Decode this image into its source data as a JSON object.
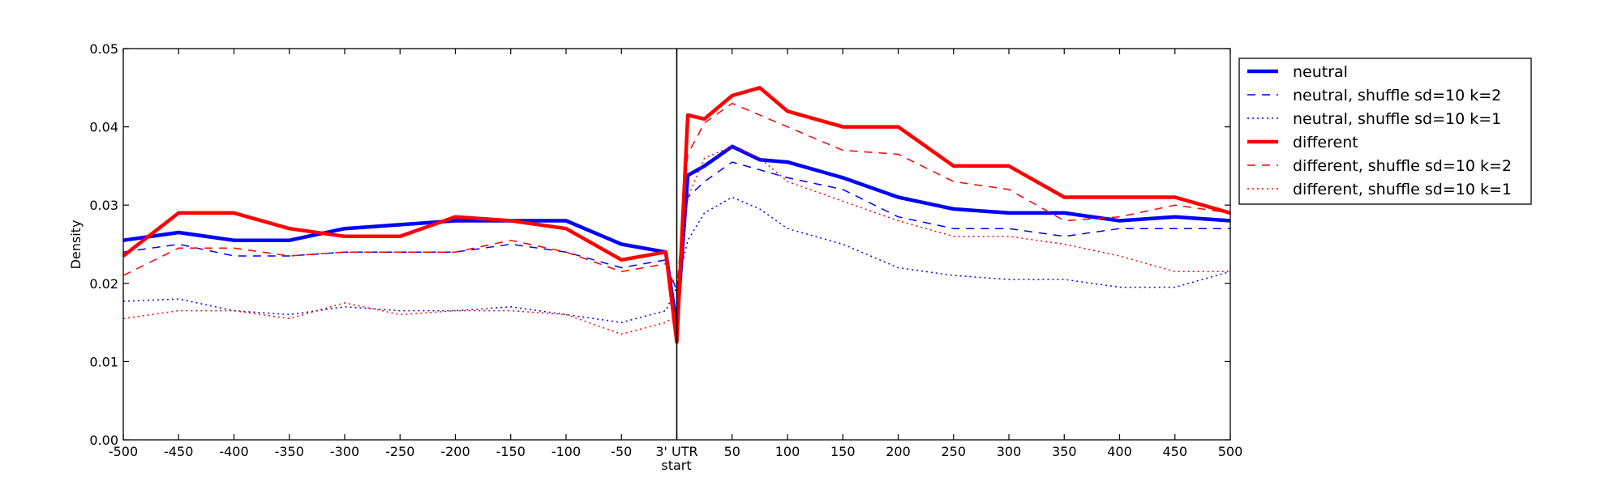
{
  "chart_data": {
    "type": "line",
    "xlabel": "",
    "ylabel": "Density",
    "xlim": [
      -500,
      500
    ],
    "ylim": [
      0.0,
      0.05
    ],
    "x_ticks": [
      -500,
      -450,
      -400,
      -350,
      -300,
      -250,
      -200,
      -150,
      -100,
      -50,
      0,
      50,
      100,
      150,
      200,
      250,
      300,
      350,
      400,
      450,
      500
    ],
    "x_tick_labels": [
      "-500",
      "-450",
      "-400",
      "-350",
      "-300",
      "-250",
      "-200",
      "-150",
      "-100",
      "-50",
      "3' UTR",
      "50",
      "100",
      "150",
      "200",
      "250",
      "300",
      "350",
      "400",
      "450",
      "500"
    ],
    "x_tick_sublabel": "start",
    "y_ticks": [
      0.0,
      0.01,
      0.02,
      0.03,
      0.04,
      0.05
    ],
    "y_tick_labels": [
      "0.00",
      "0.01",
      "0.02",
      "0.03",
      "0.04",
      "0.05"
    ],
    "vertical_line_x": 0,
    "grid": false,
    "legend_position": "upper right outside",
    "x": [
      -500,
      -450,
      -400,
      -350,
      -300,
      -250,
      -200,
      -150,
      -100,
      -50,
      -10,
      0,
      10,
      25,
      50,
      75,
      100,
      150,
      200,
      250,
      300,
      350,
      400,
      450,
      500
    ],
    "series": [
      {
        "name": "neutral",
        "color": "#0000ff",
        "style": "solid",
        "weight": "thick",
        "values": [
          0.0255,
          0.0265,
          0.0255,
          0.0255,
          0.027,
          0.0275,
          0.028,
          0.028,
          0.028,
          0.025,
          0.024,
          0.0145,
          0.0338,
          0.035,
          0.0375,
          0.0358,
          0.0355,
          0.0335,
          0.031,
          0.0295,
          0.029,
          0.029,
          0.028,
          0.0285,
          0.028
        ]
      },
      {
        "name": "neutral, shuffle sd=10 k=2",
        "color": "#0000ff",
        "style": "dashed",
        "weight": "thin",
        "values": [
          0.024,
          0.025,
          0.0235,
          0.0235,
          0.024,
          0.024,
          0.024,
          0.025,
          0.024,
          0.022,
          0.023,
          0.019,
          0.031,
          0.033,
          0.0355,
          0.0345,
          0.0335,
          0.032,
          0.0285,
          0.027,
          0.027,
          0.026,
          0.027,
          0.027,
          0.027
        ]
      },
      {
        "name": "neutral, shuffle sd=10 k=1",
        "color": "#0000ff",
        "style": "dotted",
        "weight": "thin",
        "values": [
          0.0177,
          0.018,
          0.0165,
          0.016,
          0.017,
          0.0165,
          0.0165,
          0.017,
          0.016,
          0.015,
          0.0165,
          0.0195,
          0.0255,
          0.029,
          0.031,
          0.0295,
          0.027,
          0.025,
          0.022,
          0.021,
          0.0205,
          0.0205,
          0.0195,
          0.0195,
          0.0215
        ]
      },
      {
        "name": "different",
        "color": "#ff0000",
        "style": "solid",
        "weight": "thick",
        "values": [
          0.0235,
          0.029,
          0.029,
          0.027,
          0.026,
          0.026,
          0.0285,
          0.028,
          0.027,
          0.023,
          0.024,
          0.0125,
          0.0415,
          0.041,
          0.044,
          0.045,
          0.042,
          0.04,
          0.04,
          0.035,
          0.035,
          0.031,
          0.031,
          0.031,
          0.029
        ]
      },
      {
        "name": "different, shuffle sd=10 k=2",
        "color": "#ff0000",
        "style": "dashed",
        "weight": "thin",
        "values": [
          0.021,
          0.0245,
          0.0245,
          0.0235,
          0.024,
          0.024,
          0.024,
          0.0255,
          0.024,
          0.0215,
          0.0225,
          0.019,
          0.0365,
          0.0405,
          0.043,
          0.0415,
          0.04,
          0.037,
          0.0365,
          0.033,
          0.032,
          0.028,
          0.0285,
          0.03,
          0.029
        ]
      },
      {
        "name": "different, shuffle sd=10 k=1",
        "color": "#ff0000",
        "style": "dotted",
        "weight": "thin",
        "values": [
          0.0155,
          0.0165,
          0.0165,
          0.0155,
          0.0175,
          0.016,
          0.0165,
          0.0165,
          0.016,
          0.0135,
          0.015,
          0.016,
          0.031,
          0.036,
          0.0375,
          0.036,
          0.033,
          0.0305,
          0.028,
          0.026,
          0.026,
          0.025,
          0.0235,
          0.0215,
          0.0215
        ]
      }
    ]
  }
}
